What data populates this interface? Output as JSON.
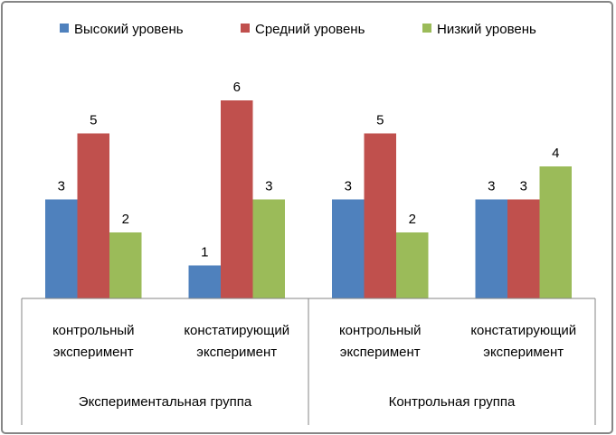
{
  "chart_data": {
    "type": "bar",
    "title": "",
    "xlabel": "",
    "ylabel": "",
    "ylim": [
      0,
      6
    ],
    "grid": false,
    "legend_position": "top",
    "groups": [
      {
        "label": "Экспериментальная группа",
        "categories": [
          "контрольный эксперимент",
          "констатирующий эксперимент"
        ]
      },
      {
        "label": "Контрольная группа",
        "categories": [
          "контрольный эксперимент",
          "констатирующий эксперимент"
        ]
      }
    ],
    "category_lines": [
      [
        "контрольный",
        "эксперимент"
      ],
      [
        "констатирующий",
        "эксперимент"
      ],
      [
        "контрольный",
        "эксперимент"
      ],
      [
        "констатирующий",
        "эксперимент"
      ]
    ],
    "series": [
      {
        "name": "Высокий уровень",
        "color": "#4f81bd",
        "values": [
          3,
          1,
          3,
          3
        ]
      },
      {
        "name": "Средний уровень",
        "color": "#c0504d",
        "values": [
          5,
          6,
          5,
          3
        ]
      },
      {
        "name": "Низкий уровень",
        "color": "#9bbb59",
        "values": [
          2,
          3,
          2,
          4
        ]
      }
    ]
  }
}
